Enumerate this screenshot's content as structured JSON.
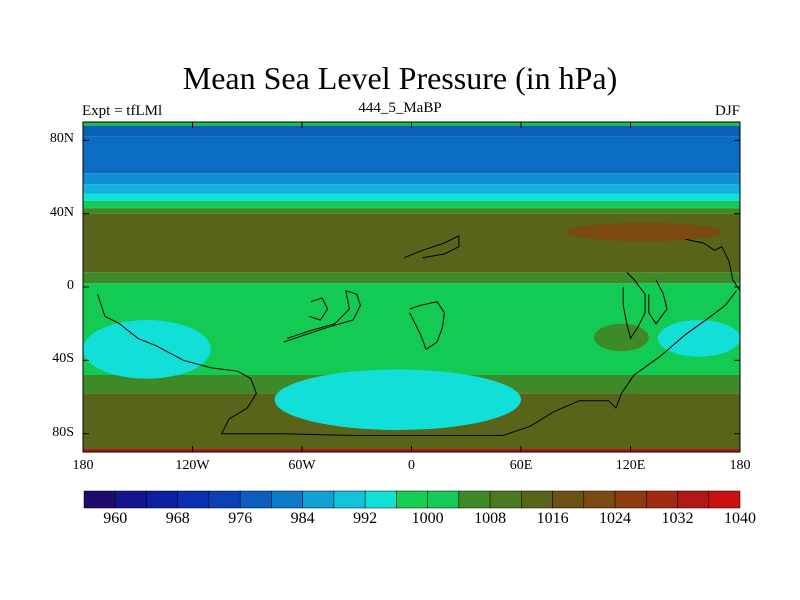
{
  "title": "Mean Sea Level Pressure (in hPa)",
  "subtitle_left": "Expt = tfLMl",
  "subtitle_center": "444_5_MaBP",
  "subtitle_right": "DJF",
  "map": {
    "lon_range": [
      -180,
      180
    ],
    "lat_range": [
      -90,
      90
    ],
    "x_ticks": [
      {
        "lon": -180,
        "label": "180"
      },
      {
        "lon": -120,
        "label": "120W"
      },
      {
        "lon": -60,
        "label": "60W"
      },
      {
        "lon": 0,
        "label": "0"
      },
      {
        "lon": 60,
        "label": "60E"
      },
      {
        "lon": 120,
        "label": "120E"
      },
      {
        "lon": 180,
        "label": "180"
      }
    ],
    "y_ticks": [
      {
        "lat": 80,
        "label": "80N"
      },
      {
        "lat": 40,
        "label": "40N"
      },
      {
        "lat": 0,
        "label": "0"
      },
      {
        "lat": -40,
        "label": "40S"
      },
      {
        "lat": -80,
        "label": "80S"
      }
    ],
    "zonal_bands": [
      {
        "lat_top": 90,
        "lat_bottom": 88,
        "color": "#1fbf49"
      },
      {
        "lat_top": 88,
        "lat_bottom": 82,
        "color": "#0a60b8"
      },
      {
        "lat_top": 82,
        "lat_bottom": 62,
        "color": "#0a6cc2"
      },
      {
        "lat_top": 62,
        "lat_bottom": 56,
        "color": "#0f8fd4"
      },
      {
        "lat_top": 56,
        "lat_bottom": 51,
        "color": "#11b3dc"
      },
      {
        "lat_top": 51,
        "lat_bottom": 47,
        "color": "#12e0d8"
      },
      {
        "lat_top": 47,
        "lat_bottom": 43,
        "color": "#17c95a"
      },
      {
        "lat_top": 43,
        "lat_bottom": 40,
        "color": "#3f8a28"
      },
      {
        "lat_top": 40,
        "lat_bottom": 8,
        "color": "#59631a"
      },
      {
        "lat_top": 8,
        "lat_bottom": 2,
        "color": "#3f8a28"
      },
      {
        "lat_top": 2,
        "lat_bottom": -18,
        "color": "#13cb53"
      },
      {
        "lat_top": -18,
        "lat_bottom": -48,
        "color": "#13cb53"
      },
      {
        "lat_top": -48,
        "lat_bottom": -58,
        "color": "#3f8a28"
      },
      {
        "lat_top": -58,
        "lat_bottom": -90,
        "color": "#59631a"
      }
    ],
    "features": [
      {
        "type": "high",
        "lon": [
          85,
          170
        ],
        "lat": [
          25,
          35
        ],
        "color": "#7a4a10"
      },
      {
        "type": "low-cyan",
        "lon": [
          -180,
          -110
        ],
        "lat": [
          -18,
          -50
        ],
        "color": "#12e0d8"
      },
      {
        "type": "low-cyan",
        "lon": [
          -75,
          60
        ],
        "lat": [
          -45,
          -78
        ],
        "color": "#12e0d8"
      },
      {
        "type": "low-cyan",
        "lon": [
          135,
          180
        ],
        "lat": [
          -18,
          -38
        ],
        "color": "#12e0d8"
      },
      {
        "type": "low-green",
        "lon": [
          100,
          130
        ],
        "lat": [
          -20,
          -35
        ],
        "color": "#3f8a28"
      },
      {
        "type": "polar-high",
        "lon": [
          60,
          180
        ],
        "lat": [
          -58,
          -85
        ],
        "color": "#59631a"
      }
    ],
    "bottom_band_color": "#b01818"
  },
  "colorbar": {
    "colors": [
      "#1f0a6b",
      "#14148f",
      "#0c1fa0",
      "#0a2fb0",
      "#0a42b6",
      "#0a5fbe",
      "#0e79c6",
      "#11a0d2",
      "#13c3dc",
      "#12e0d8",
      "#15cf54",
      "#17c95a",
      "#3f8a28",
      "#4a7a20",
      "#59631a",
      "#6b5214",
      "#7a4a10",
      "#8e3a10",
      "#a02a12",
      "#b01818",
      "#c81010"
    ],
    "labels": [
      "960",
      "968",
      "976",
      "984",
      "992",
      "1000",
      "1008",
      "1016",
      "1024",
      "1032",
      "1040"
    ]
  }
}
